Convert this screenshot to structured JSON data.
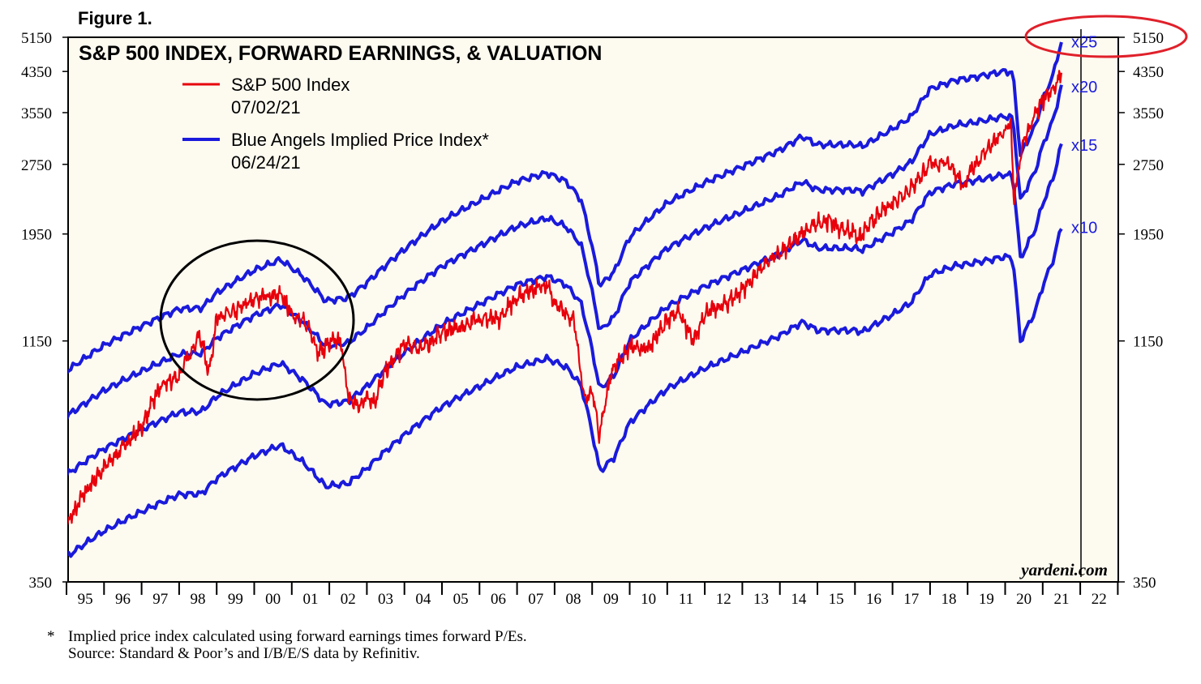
{
  "figure_label": "Figure 1.",
  "footnote": {
    "star": "*",
    "note": "Implied price index calculated using forward earnings times forward P/Es.",
    "source": "Source: Standard & Poor’s and I/B/E/S data by Refinitiv."
  },
  "chart_data": {
    "type": "line",
    "title": "S&P 500 INDEX, FORWARD EARNINGS, & VALUATION",
    "watermark": "yardeni.com",
    "y_scale": "log",
    "ylim": [
      350,
      5150
    ],
    "xlim": [
      1995,
      2022.6
    ],
    "y_ticks": [
      "5150",
      "4350",
      "3550",
      "2750",
      "1950",
      "1150",
      "350"
    ],
    "y_tick_values": [
      5150,
      4350,
      3550,
      2750,
      1950,
      1150,
      350
    ],
    "x_ticks": [
      "95",
      "96",
      "97",
      "98",
      "99",
      "00",
      "01",
      "02",
      "03",
      "04",
      "05",
      "06",
      "07",
      "08",
      "09",
      "10",
      "11",
      "12",
      "13",
      "14",
      "15",
      "16",
      "17",
      "18",
      "19",
      "20",
      "21",
      "22"
    ],
    "legend": [
      {
        "label": "S&P 500 Index",
        "date": "07/02/21",
        "color": "#e8000b"
      },
      {
        "label": "Blue Angels Implied Price Index*",
        "date": "06/24/21",
        "color": "#1a1adc"
      }
    ],
    "forward_earnings_x": [
      1995.0,
      1996.0,
      1997.0,
      1998.0,
      1998.6,
      1999.0,
      2000.0,
      2000.7,
      2001.3,
      2001.9,
      2002.5,
      2003.0,
      2004.0,
      2005.0,
      2006.0,
      2007.0,
      2007.8,
      2008.3,
      2008.7,
      2009.2,
      2009.6,
      2010.0,
      2011.0,
      2012.0,
      2013.0,
      2014.0,
      2014.6,
      2015.0,
      2016.0,
      2016.2,
      2017.0,
      2017.5,
      2018.0,
      2018.7,
      2019.0,
      2019.5,
      2020.0,
      2020.2,
      2020.4,
      2020.8,
      2021.0,
      2021.3,
      2021.5
    ],
    "forward_earnings": [
      39.6,
      45.0,
      49.5,
      53.9,
      54.1,
      58.3,
      65.2,
      68.7,
      63.2,
      56.1,
      56.9,
      61.3,
      72.3,
      83.1,
      91.9,
      101.2,
      105.4,
      101.2,
      92.5,
      60.3,
      64.9,
      76.8,
      90.8,
      100.4,
      108.8,
      118.0,
      126.3,
      121.2,
      121.2,
      120.2,
      131.0,
      139.1,
      159.6,
      167.0,
      168.1,
      171.1,
      174.3,
      173.0,
      114.6,
      132.8,
      150.6,
      173.0,
      202.4
    ],
    "multiples": [
      {
        "name": "x25",
        "value": 25
      },
      {
        "name": "x20",
        "value": 20
      },
      {
        "name": "x15",
        "value": 15
      },
      {
        "name": "x10",
        "value": 10
      }
    ],
    "sp500": {
      "x": [
        1995.0,
        1995.5,
        1996.0,
        1996.5,
        1997.0,
        1997.5,
        1998.0,
        1998.55,
        1998.8,
        1999.0,
        1999.5,
        2000.0,
        2000.2,
        2000.7,
        2001.0,
        2001.5,
        2001.7,
        2002.0,
        2002.3,
        2002.5,
        2002.8,
        2003.0,
        2003.2,
        2003.5,
        2004.0,
        2004.5,
        2005.0,
        2005.5,
        2006.0,
        2006.5,
        2007.0,
        2007.5,
        2007.8,
        2008.0,
        2008.5,
        2008.8,
        2009.0,
        2009.2,
        2009.5,
        2010.0,
        2010.5,
        2011.0,
        2011.3,
        2011.7,
        2012.0,
        2012.5,
        2013.0,
        2013.5,
        2014.0,
        2014.5,
        2015.0,
        2015.3,
        2015.6,
        2016.0,
        2016.1,
        2016.5,
        2017.0,
        2017.5,
        2018.0,
        2018.5,
        2018.95,
        2019.0,
        2019.5,
        2020.0,
        2020.15,
        2020.23,
        2020.5,
        2021.0,
        2021.3,
        2021.5
      ],
      "y": [
        460,
        545,
        615,
        680,
        750,
        915,
        970,
        1185,
        980,
        1280,
        1330,
        1420,
        1430,
        1440,
        1320,
        1220,
        1080,
        1140,
        1150,
        870,
        830,
        880,
        850,
        990,
        1130,
        1110,
        1200,
        1230,
        1290,
        1270,
        1430,
        1500,
        1520,
        1380,
        1280,
        850,
        900,
        720,
        980,
        1120,
        1100,
        1280,
        1330,
        1140,
        1320,
        1370,
        1480,
        1640,
        1780,
        1920,
        2060,
        2090,
        2000,
        1970,
        1900,
        2090,
        2280,
        2450,
        2750,
        2780,
        2410,
        2600,
        2950,
        3230,
        3390,
        2280,
        3100,
        3760,
        4000,
        4350
      ]
    }
  }
}
